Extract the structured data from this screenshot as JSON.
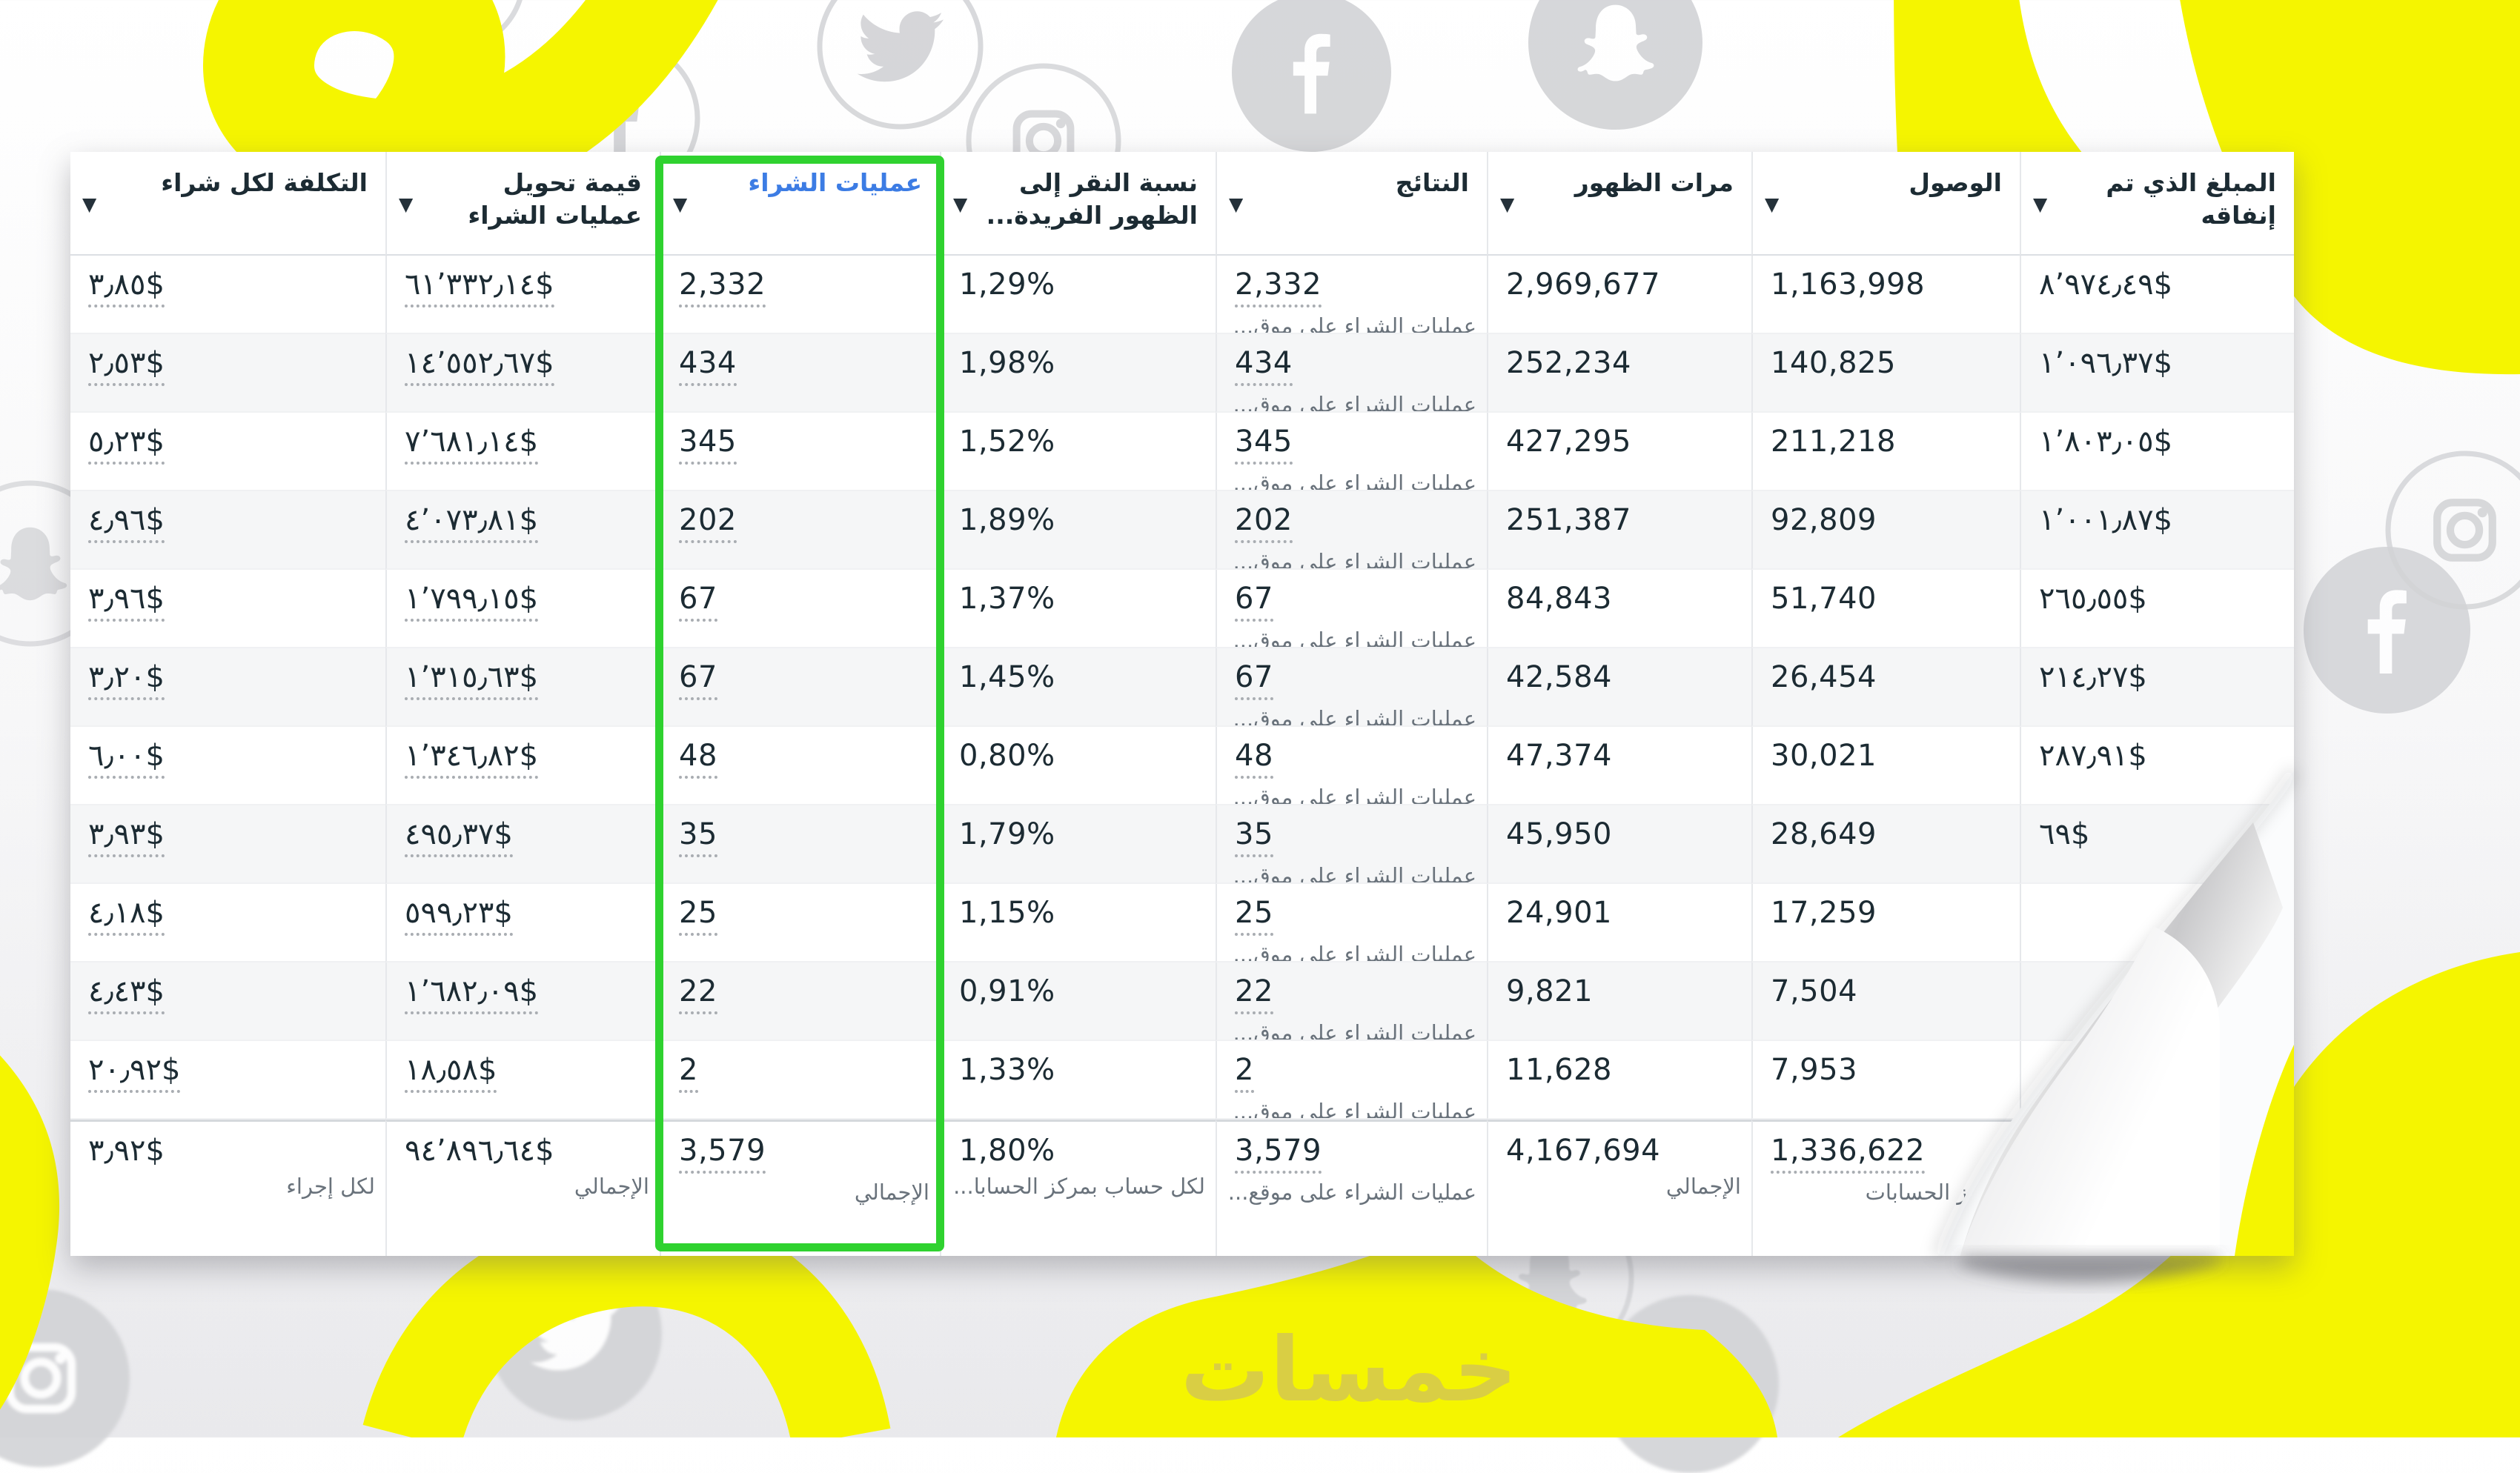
{
  "watermark_text": "خمسات",
  "colors": {
    "highlight_green": "#2fd22f",
    "sorted_column_blue": "#3c7ce4",
    "accent_yellow": "#f5f500",
    "text_dark": "#1c2b33",
    "text_muted": "#69727b"
  },
  "background": {
    "icon_names": [
      "facebook-icon",
      "twitter-icon",
      "instagram-icon",
      "snapchat-icon"
    ]
  },
  "table": {
    "columns": [
      {
        "key": "spent",
        "label": "المبلغ الذي تم إنفاقه",
        "sort_arrows": "↓↑",
        "sorted": false,
        "highlighted": false
      },
      {
        "key": "reach",
        "label": "الوصول",
        "sort_arrows": "↓↑",
        "sorted": false,
        "highlighted": false
      },
      {
        "key": "impressions",
        "label": "مرات الظهور",
        "sort_arrows": "↓↑",
        "sorted": false,
        "highlighted": false
      },
      {
        "key": "results",
        "label": "النتائج",
        "sort_arrows": "↓↑",
        "sorted": false,
        "highlighted": false
      },
      {
        "key": "ctr",
        "label": "نسبة النقر إلى الظهور الفريدة...",
        "sort_arrows": "",
        "sorted": false,
        "highlighted": false
      },
      {
        "key": "purchases",
        "label": "عمليات الشراء",
        "sort_arrows": "↓",
        "sorted": true,
        "highlighted": true
      },
      {
        "key": "conv_value",
        "label": "قيمة تحويل عمليات الشراء",
        "sort_arrows": "↓↑",
        "sorted": false,
        "highlighted": false
      },
      {
        "key": "cost",
        "label": "التكلفة لكل شراء",
        "sort_arrows": "↓↑",
        "sorted": false,
        "highlighted": false
      }
    ],
    "results_sublabel": "عمليات الشراء على موق...",
    "rows": [
      {
        "spent": "٨٬٩٧٤٫٤٩$",
        "reach": "1,163,998",
        "impressions": "2,969,677",
        "results": "2,332",
        "ctr": "1,29%",
        "purchases": "2,332",
        "conv_value": "٦١٬٣٣٢٫١٤$",
        "cost": "٣٫٨٥$"
      },
      {
        "spent": "١٬٠٩٦٫٣٧$",
        "reach": "140,825",
        "impressions": "252,234",
        "results": "434",
        "ctr": "1,98%",
        "purchases": "434",
        "conv_value": "١٤٬٥٥٢٫٦٧$",
        "cost": "٢٫٥٣$"
      },
      {
        "spent": "١٬٨٠٣٫٠٥$",
        "reach": "211,218",
        "impressions": "427,295",
        "results": "345",
        "ctr": "1,52%",
        "purchases": "345",
        "conv_value": "٧٬٦٨١٫١٤$",
        "cost": "٥٫٢٣$"
      },
      {
        "spent": "١٬٠٠١٫٨٧$",
        "reach": "92,809",
        "impressions": "251,387",
        "results": "202",
        "ctr": "1,89%",
        "purchases": "202",
        "conv_value": "٤٬٠٧٣٫٨١$",
        "cost": "٤٫٩٦$"
      },
      {
        "spent": "٢٦٥٫٥٥$",
        "reach": "51,740",
        "impressions": "84,843",
        "results": "67",
        "ctr": "1,37%",
        "purchases": "67",
        "conv_value": "١٬٧٩٩٫١٥$",
        "cost": "٣٫٩٦$"
      },
      {
        "spent": "٢١٤٫٢٧$",
        "reach": "26,454",
        "impressions": "42,584",
        "results": "67",
        "ctr": "1,45%",
        "purchases": "67",
        "conv_value": "١٬٣١٥٫٦٣$",
        "cost": "٣٫٢٠$"
      },
      {
        "spent": "٢٨٧٫٩١$",
        "reach": "30,021",
        "impressions": "47,374",
        "results": "48",
        "ctr": "0,80%",
        "purchases": "48",
        "conv_value": "١٬٣٤٦٫٨٢$",
        "cost": "٦٫٠٠$"
      },
      {
        "spent": "٦٩$",
        "reach": "28,649",
        "impressions": "45,950",
        "results": "35",
        "ctr": "1,79%",
        "purchases": "35",
        "conv_value": "٤٩٥٫٣٧$",
        "cost": "٣٫٩٣$"
      },
      {
        "spent": "",
        "reach": "17,259",
        "impressions": "24,901",
        "results": "25",
        "ctr": "1,15%",
        "purchases": "25",
        "conv_value": "٥٩٩٫٢٣$",
        "cost": "٤٫١٨$"
      },
      {
        "spent": "",
        "reach": "7,504",
        "impressions": "9,821",
        "results": "22",
        "ctr": "0,91%",
        "purchases": "22",
        "conv_value": "١٬٦٨٢٫٠٩$",
        "cost": "٤٫٤٣$"
      },
      {
        "spent": "",
        "reach": "7,953",
        "impressions": "11,628",
        "results": "2",
        "ctr": "1,33%",
        "purchases": "2",
        "conv_value": "١٨٫٥٨$",
        "cost": "٢٠٫٩٢$"
      }
    ],
    "totals": {
      "spent": "",
      "spent_sub": "",
      "reach": "1,336,622",
      "reach_sub": "بمركز الحسابات",
      "impressions": "4,167,694",
      "impressions_sub": "الإجمالي",
      "results": "3,579",
      "results_sub": "عمليات الشراء على موقع...",
      "ctr": "1,80%",
      "ctr_sub": "لكل حساب بمركز الحسابا...",
      "purchases": "3,579",
      "purchases_sub": "الإجمالي",
      "conv_value": "٩٤٬٨٩٦٫٦٤$",
      "conv_value_sub": "الإجمالي",
      "cost": "٣٫٩٢$",
      "cost_sub": "لكل إجراء"
    }
  }
}
